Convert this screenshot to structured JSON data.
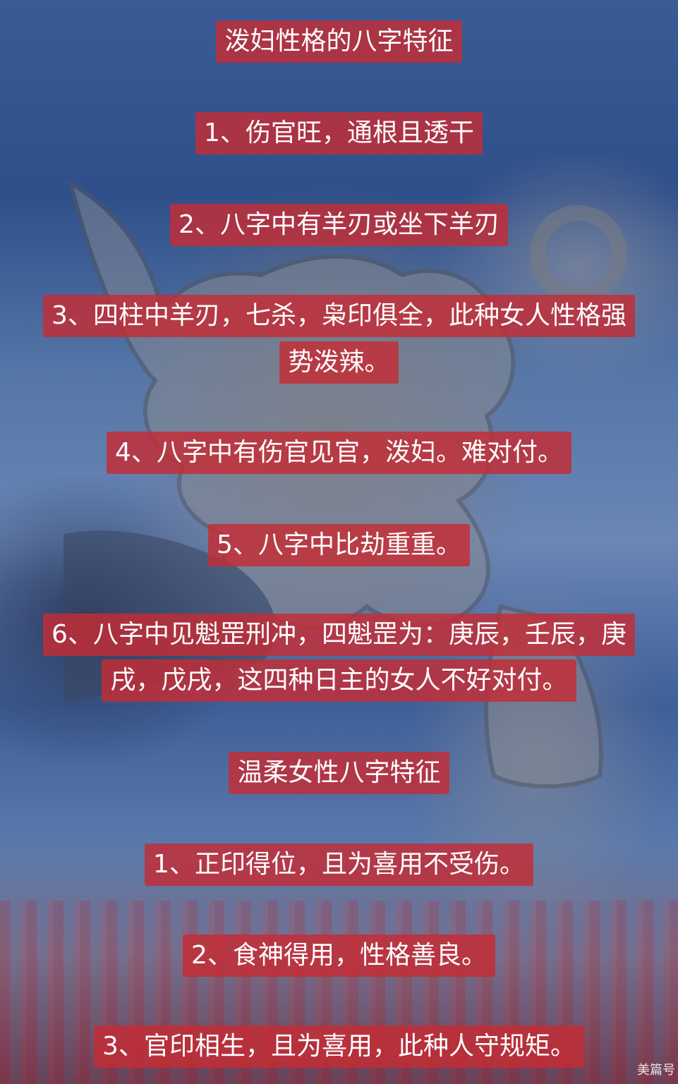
{
  "title": "泼妇性格的八字特征",
  "shrew_items": [
    "1、伤官旺，通根且透干",
    "2、八字中有羊刃或坐下羊刃",
    "3、四柱中羊刃，七杀，枭印俱全，此种女人性格强",
    "势泼辣。",
    "4、八字中有伤官见官，泼妇。难对付。",
    "5、八字中比劫重重。",
    "6、八字中见魁罡刑冲，四魁罡为：庚辰，壬辰，庚",
    "戌，戊戌，这四种日主的女人不好对付。"
  ],
  "gentle_title": "温柔女性八字特征",
  "gentle_items": [
    "1、正印得位，且为喜用不受伤。",
    "2、食神得用，性格善良。",
    "3、官印相生，且为喜用，此种人守规矩。"
  ],
  "watermark": "美篇号",
  "colors": {
    "label_bg": "#c42c34",
    "text": "#ffffff"
  }
}
